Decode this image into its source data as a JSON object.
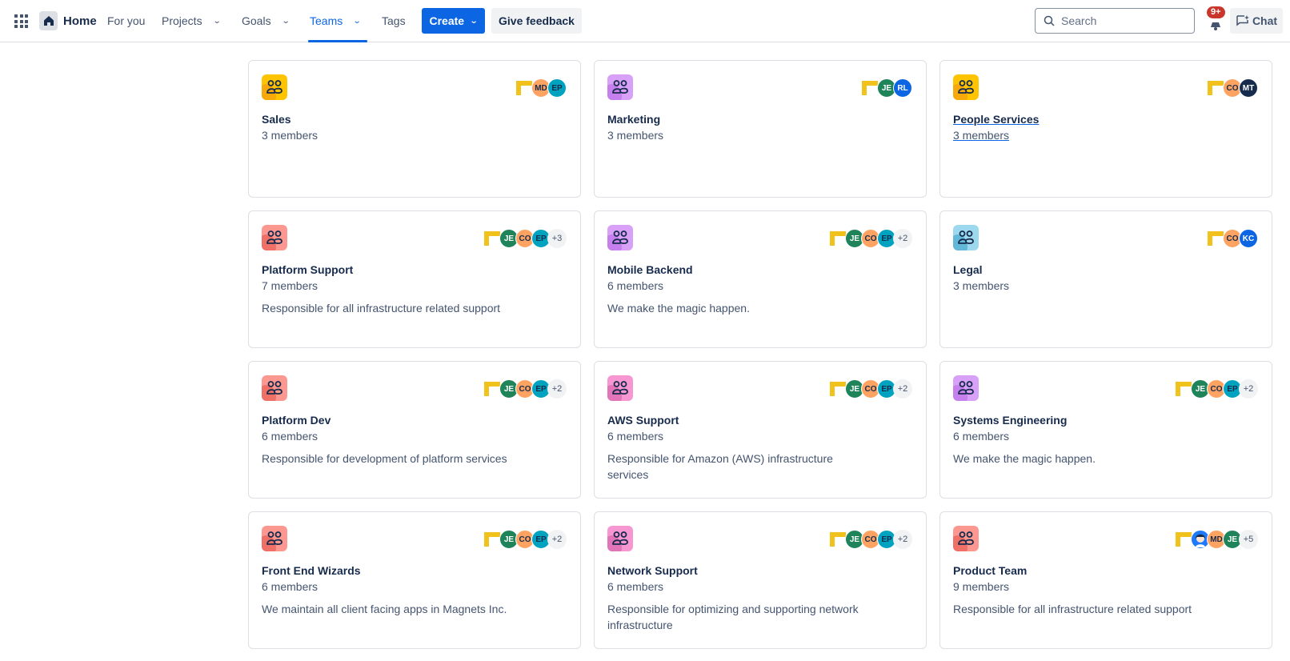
{
  "header": {
    "apps_icon": "app-switcher-grid-icon",
    "home_label": "Home",
    "nav": [
      {
        "label": "For you",
        "has_dropdown": false,
        "active": false
      },
      {
        "label": "Projects",
        "has_dropdown": true,
        "active": false
      },
      {
        "label": "Goals",
        "has_dropdown": true,
        "active": false
      },
      {
        "label": "Teams",
        "has_dropdown": true,
        "active": true
      },
      {
        "label": "Tags",
        "has_dropdown": false,
        "active": false
      }
    ],
    "create_label": "Create",
    "feedback_label": "Give feedback",
    "search_placeholder": "Search",
    "notifications_badge": "9+",
    "chat_label": "Chat"
  },
  "colors": {
    "brand_blue": "#0c66e4",
    "text_primary": "#172b4d",
    "text_subtle": "#44546f",
    "border": "#dcdfe4",
    "badge_red": "#c9372c"
  },
  "teams": [
    {
      "name": "Sales",
      "members": "3 members",
      "description": "",
      "icon_color": "yellow",
      "avatars": [
        {
          "initials": "MD",
          "bg": "#fea362",
          "fg": "#172b4d"
        },
        {
          "initials": "EP",
          "bg": "#00a3bf",
          "fg": "#172b4d"
        }
      ],
      "more": ""
    },
    {
      "name": "Marketing",
      "members": "3 members",
      "description": "",
      "icon_color": "purple",
      "avatars": [
        {
          "initials": "JE",
          "bg": "#1f845a",
          "fg": "#ffffff"
        },
        {
          "initials": "RL",
          "bg": "#0c66e4",
          "fg": "#ffffff"
        }
      ],
      "more": ""
    },
    {
      "name": "People Services",
      "members": "3 members",
      "description": "",
      "icon_color": "yellow",
      "hover": true,
      "avatars": [
        {
          "initials": "CO",
          "bg": "#fea362",
          "fg": "#172b4d"
        },
        {
          "initials": "MT",
          "bg": "#172b4d",
          "fg": "#ffffff"
        }
      ],
      "more": ""
    },
    {
      "name": "Platform Support",
      "members": "7 members",
      "description": "Responsible for all infrastructure related support",
      "icon_color": "red",
      "avatars": [
        {
          "initials": "JE",
          "bg": "#1f845a",
          "fg": "#ffffff"
        },
        {
          "initials": "CO",
          "bg": "#fea362",
          "fg": "#172b4d"
        },
        {
          "initials": "EP",
          "bg": "#00a3bf",
          "fg": "#172b4d"
        }
      ],
      "more": "+3"
    },
    {
      "name": "Mobile Backend",
      "members": "6 members",
      "description": "We make the magic happen.",
      "icon_color": "purple",
      "avatars": [
        {
          "initials": "JE",
          "bg": "#1f845a",
          "fg": "#ffffff"
        },
        {
          "initials": "CO",
          "bg": "#fea362",
          "fg": "#172b4d"
        },
        {
          "initials": "EP",
          "bg": "#00a3bf",
          "fg": "#172b4d"
        }
      ],
      "more": "+2"
    },
    {
      "name": "Legal",
      "members": "3 members",
      "description": "",
      "icon_color": "teal",
      "avatars": [
        {
          "initials": "CO",
          "bg": "#fea362",
          "fg": "#172b4d"
        },
        {
          "initials": "KC",
          "bg": "#0c66e4",
          "fg": "#ffffff"
        }
      ],
      "more": ""
    },
    {
      "name": "Platform Dev",
      "members": "6 members",
      "description": "Responsible for development of platform services",
      "icon_color": "red",
      "avatars": [
        {
          "initials": "JE",
          "bg": "#1f845a",
          "fg": "#ffffff"
        },
        {
          "initials": "CO",
          "bg": "#fea362",
          "fg": "#172b4d"
        },
        {
          "initials": "EP",
          "bg": "#00a3bf",
          "fg": "#172b4d"
        }
      ],
      "more": "+2"
    },
    {
      "name": "AWS Support",
      "members": "6 members",
      "description": "Responsible for Amazon (AWS) infrastructure services",
      "icon_color": "pink",
      "avatars": [
        {
          "initials": "JE",
          "bg": "#1f845a",
          "fg": "#ffffff"
        },
        {
          "initials": "CO",
          "bg": "#fea362",
          "fg": "#172b4d"
        },
        {
          "initials": "EP",
          "bg": "#00a3bf",
          "fg": "#172b4d"
        }
      ],
      "more": "+2"
    },
    {
      "name": "Systems Engineering",
      "members": "6 members",
      "description": "We make the magic happen.",
      "icon_color": "purple",
      "avatars": [
        {
          "initials": "JE",
          "bg": "#1f845a",
          "fg": "#ffffff"
        },
        {
          "initials": "CO",
          "bg": "#fea362",
          "fg": "#172b4d"
        },
        {
          "initials": "EP",
          "bg": "#00a3bf",
          "fg": "#172b4d"
        }
      ],
      "more": "+2"
    },
    {
      "name": "Front End Wizards",
      "members": "6 members",
      "description": "We maintain all client facing apps in Magnets Inc.",
      "icon_color": "red",
      "avatars": [
        {
          "initials": "JE",
          "bg": "#1f845a",
          "fg": "#ffffff"
        },
        {
          "initials": "CO",
          "bg": "#fea362",
          "fg": "#172b4d"
        },
        {
          "initials": "EP",
          "bg": "#00a3bf",
          "fg": "#172b4d"
        }
      ],
      "more": "+2"
    },
    {
      "name": "Network Support",
      "members": "6 members",
      "description": "Responsible for optimizing and supporting network infrastructure",
      "icon_color": "pink",
      "avatars": [
        {
          "initials": "JE",
          "bg": "#1f845a",
          "fg": "#ffffff"
        },
        {
          "initials": "CO",
          "bg": "#fea362",
          "fg": "#172b4d"
        },
        {
          "initials": "EP",
          "bg": "#00a3bf",
          "fg": "#172b4d"
        }
      ],
      "more": "+2"
    },
    {
      "name": "Product Team",
      "members": "9 members",
      "description": "Responsible for all infrastructure related support",
      "icon_color": "red",
      "avatars": [
        {
          "initials": "",
          "photo": true,
          "bg": "#1d7afc",
          "fg": "#ffffff"
        },
        {
          "initials": "MD",
          "bg": "#fea362",
          "fg": "#172b4d"
        },
        {
          "initials": "JE",
          "bg": "#1f845a",
          "fg": "#ffffff"
        }
      ],
      "more": "+5"
    }
  ]
}
